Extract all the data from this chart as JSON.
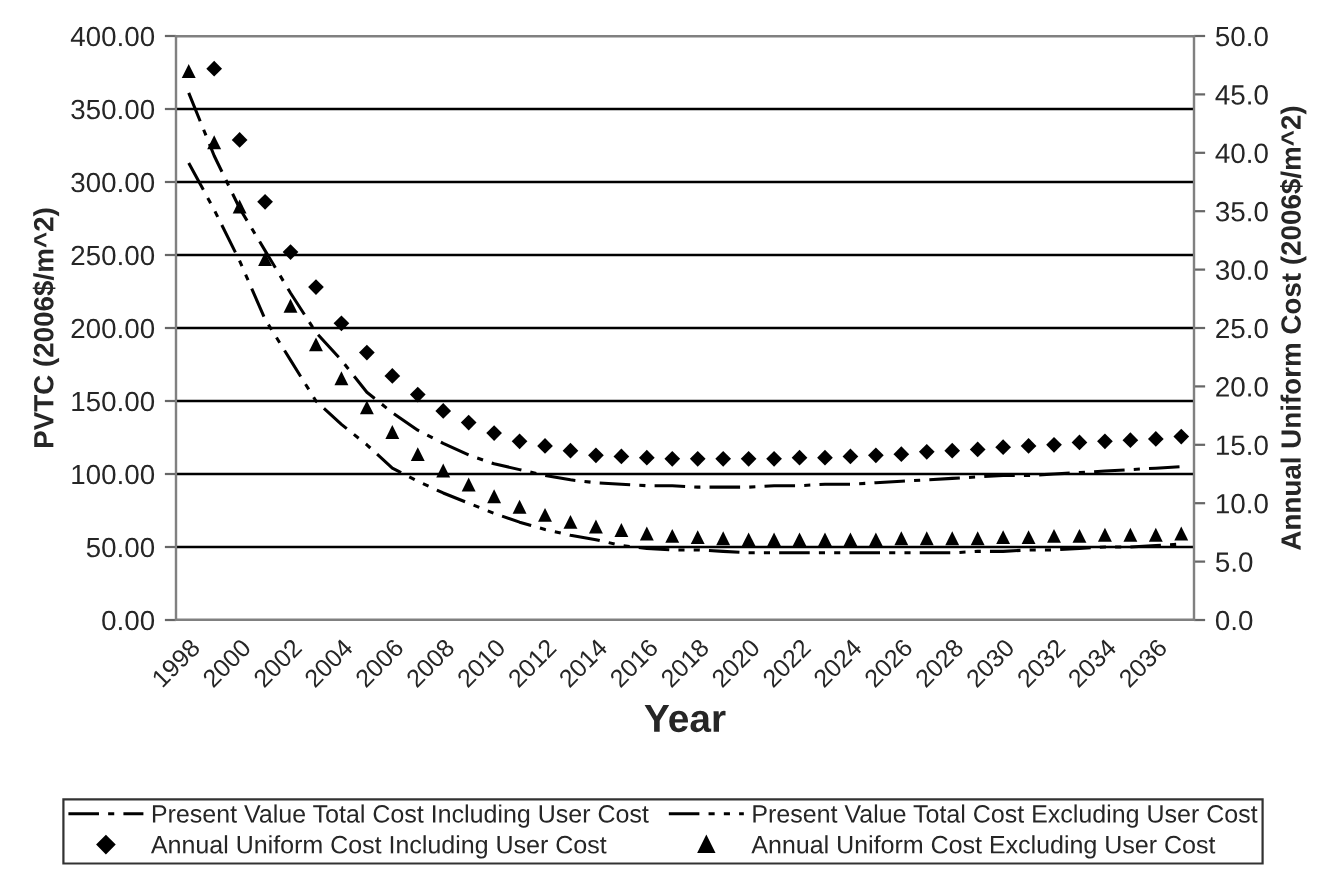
{
  "chart_data": {
    "type": "line",
    "xlabel": "Year",
    "ylabel": "PVTC (2006$/m^2)",
    "y2label": "Annual Uniform Cost (2006$/m^2)",
    "categories": [
      "1998",
      null,
      "2000",
      null,
      "2002",
      null,
      "2004",
      null,
      "2006",
      null,
      "2008",
      null,
      "2010",
      null,
      "2012",
      null,
      "2014",
      null,
      "2016",
      null,
      "2018",
      null,
      "2020",
      null,
      "2022",
      null,
      "2024",
      null,
      "2026",
      null,
      "2028",
      null,
      "2030",
      null,
      "2032",
      null,
      "2034",
      null,
      "2036",
      null
    ],
    "ylim": [
      0,
      400
    ],
    "yticks": [
      {
        "value": 0,
        "label": "0.00"
      },
      {
        "value": 50,
        "label": "50.00"
      },
      {
        "value": 100,
        "label": "100.00"
      },
      {
        "value": 150,
        "label": "150.00"
      },
      {
        "value": 200,
        "label": "200.00"
      },
      {
        "value": 250,
        "label": "250.00"
      },
      {
        "value": 300,
        "label": "300.00"
      },
      {
        "value": 350,
        "label": "350.00"
      },
      {
        "value": 400,
        "label": "400.00"
      }
    ],
    "y2lim": [
      0,
      50
    ],
    "y2ticks": [
      {
        "value": 0,
        "label": "0.0"
      },
      {
        "value": 5,
        "label": "5.0"
      },
      {
        "value": 10,
        "label": "10.0"
      },
      {
        "value": 15,
        "label": "15.0"
      },
      {
        "value": 20,
        "label": "20.0"
      },
      {
        "value": 25,
        "label": "25.0"
      },
      {
        "value": 30,
        "label": "30.0"
      },
      {
        "value": 35,
        "label": "35.0"
      },
      {
        "value": 40,
        "label": "40.0"
      },
      {
        "value": 45,
        "label": "45.0"
      },
      {
        "value": 50,
        "label": "50.0"
      }
    ],
    "grid": "y",
    "legend": "bottom",
    "series": [
      {
        "name": "Present Value Total Cost Including User Cost",
        "line_style": "dashdot",
        "marker": "none",
        "color": "#000000",
        "values": [
          361,
          318,
          282,
          253,
          224,
          197,
          178,
          156,
          142,
          130,
          121,
          113,
          107,
          103,
          99,
          96,
          94,
          93,
          92,
          92,
          91,
          91,
          91,
          92,
          92,
          93,
          93,
          94,
          95,
          96,
          97,
          98,
          99,
          99,
          100,
          101,
          102,
          103,
          104,
          105
        ]
      },
      {
        "name": "Present Value Total Cost Excluding User Cost",
        "line_style": "dashdotdot",
        "marker": "none",
        "color": "#000000",
        "values": [
          313,
          281,
          246,
          206,
          178,
          150,
          134,
          120,
          104,
          95,
          87,
          80,
          73,
          67,
          62,
          58,
          55,
          51,
          49,
          48,
          48,
          47,
          46,
          46,
          46,
          46,
          46,
          46,
          46,
          46,
          46,
          47,
          47,
          48,
          48,
          49,
          50,
          50,
          51,
          52
        ]
      },
      {
        "name": "Annual Uniform Cost Including User Cost",
        "type": "scatter",
        "axis": "y2",
        "marker": "diamond",
        "color": "#000000",
        "values": [
          null,
          47.2,
          41.1,
          35.8,
          31.5,
          28.5,
          25.4,
          22.9,
          20.9,
          19.3,
          17.9,
          16.9,
          16.0,
          15.3,
          14.9,
          14.5,
          14.1,
          14.0,
          13.9,
          13.8,
          13.8,
          13.8,
          13.8,
          13.8,
          13.9,
          13.9,
          14.0,
          14.1,
          14.2,
          14.4,
          14.5,
          14.6,
          14.8,
          14.9,
          15.0,
          15.2,
          15.3,
          15.4,
          15.5,
          15.7
        ]
      },
      {
        "name": "Annual Uniform Cost Excluding User Cost",
        "type": "scatter",
        "axis": "y2",
        "marker": "triangle",
        "color": "#000000",
        "values": [
          47.0,
          40.9,
          35.4,
          30.9,
          26.9,
          23.6,
          20.7,
          18.2,
          16.1,
          14.2,
          12.8,
          11.6,
          10.6,
          9.7,
          9.0,
          8.4,
          8.0,
          7.7,
          7.4,
          7.2,
          7.1,
          7.0,
          6.9,
          6.9,
          6.9,
          6.9,
          6.9,
          6.9,
          7.0,
          7.0,
          7.0,
          7.0,
          7.1,
          7.1,
          7.2,
          7.2,
          7.3,
          7.3,
          7.3,
          7.4
        ]
      }
    ]
  }
}
